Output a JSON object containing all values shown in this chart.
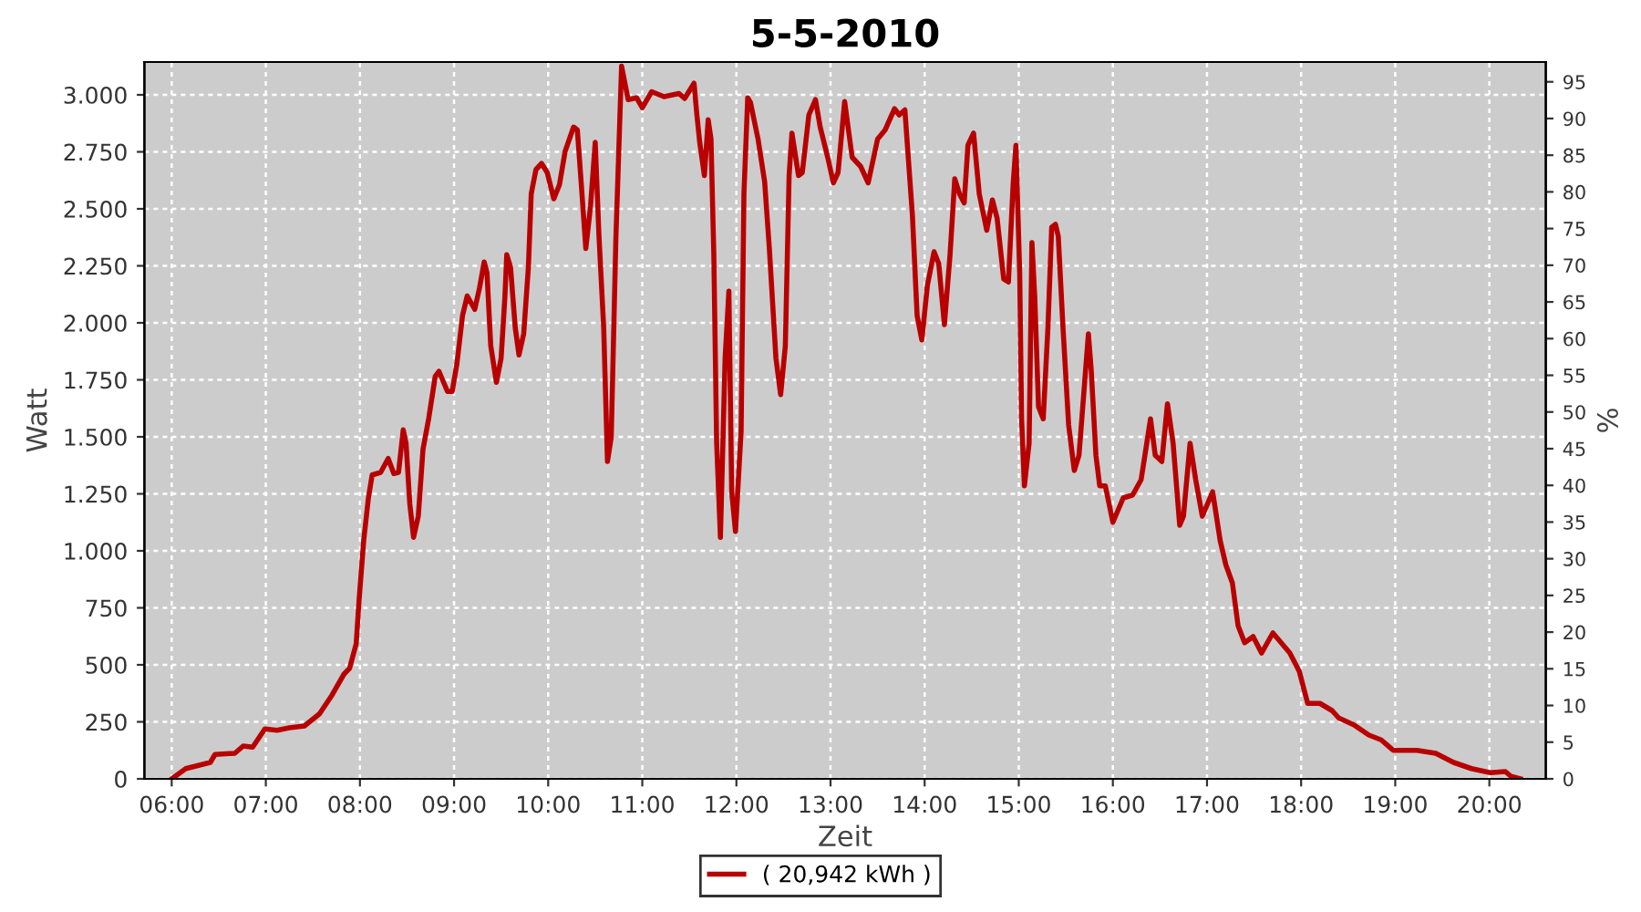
{
  "chart_data": {
    "type": "line",
    "title": "5-5-2010",
    "xlabel": "Zeit",
    "ylabel": "Watt",
    "y2label": "%",
    "xlim": [
      5.71,
      20.6
    ],
    "xticks": [
      {
        "value": 6,
        "label": "06:00"
      },
      {
        "value": 7,
        "label": "07:00"
      },
      {
        "value": 8,
        "label": "08:00"
      },
      {
        "value": 9,
        "label": "09:00"
      },
      {
        "value": 10,
        "label": "10:00"
      },
      {
        "value": 11,
        "label": "11:00"
      },
      {
        "value": 12,
        "label": "12:00"
      },
      {
        "value": 13,
        "label": "13:00"
      },
      {
        "value": 14,
        "label": "14:00"
      },
      {
        "value": 15,
        "label": "15:00"
      },
      {
        "value": 16,
        "label": "16:00"
      },
      {
        "value": 17,
        "label": "17:00"
      },
      {
        "value": 18,
        "label": "18:00"
      },
      {
        "value": 19,
        "label": "19:00"
      },
      {
        "value": 20,
        "label": "20:00"
      }
    ],
    "ylim": [
      0,
      3144
    ],
    "yticks": [
      0,
      250,
      500,
      750,
      {
        "value": 1000,
        "label": "1.000"
      },
      {
        "value": 1250,
        "label": "1.250"
      },
      {
        "value": 1500,
        "label": "1.500"
      },
      {
        "value": 1750,
        "label": "1.750"
      },
      {
        "value": 2000,
        "label": "2.000"
      },
      {
        "value": 2250,
        "label": "2.250"
      },
      {
        "value": 2500,
        "label": "2.500"
      },
      {
        "value": 2750,
        "label": "2.750"
      },
      {
        "value": 3000,
        "label": "3.000"
      }
    ],
    "y2lim": [
      0,
      97.7
    ],
    "y2ticks": [
      0,
      5,
      10,
      15,
      20,
      25,
      30,
      35,
      40,
      45,
      50,
      55,
      60,
      65,
      70,
      75,
      80,
      85,
      90,
      95
    ],
    "grid": true,
    "legend": "bottom",
    "marker": "none",
    "line_style": "solid",
    "series": [
      {
        "name": "( 20,942 kWh )",
        "color": "#b80000",
        "x": [
          6.0,
          6.15,
          6.41,
          6.46,
          6.67,
          6.76,
          6.86,
          6.99,
          7.12,
          7.25,
          7.41,
          7.57,
          7.7,
          7.83,
          7.89,
          7.96,
          7.99,
          8.04,
          8.09,
          8.13,
          8.22,
          8.3,
          8.36,
          8.41,
          8.46,
          8.49,
          8.53,
          8.57,
          8.62,
          8.67,
          8.73,
          8.8,
          8.84,
          8.93,
          8.98,
          9.03,
          9.09,
          9.14,
          9.22,
          9.27,
          9.32,
          9.35,
          9.39,
          9.45,
          9.5,
          9.54,
          9.56,
          9.6,
          9.65,
          9.69,
          9.74,
          9.79,
          9.82,
          9.87,
          9.93,
          9.99,
          10.06,
          10.12,
          10.18,
          10.27,
          10.31,
          10.35,
          10.4,
          10.45,
          10.5,
          10.54,
          10.59,
          10.63,
          10.67,
          10.72,
          10.75,
          10.78,
          10.85,
          10.94,
          11.0,
          11.1,
          11.23,
          11.39,
          11.45,
          11.55,
          11.58,
          11.61,
          11.66,
          11.7,
          11.73,
          11.76,
          11.79,
          11.83,
          11.88,
          11.92,
          11.95,
          11.99,
          12.05,
          12.08,
          12.12,
          12.15,
          12.23,
          12.3,
          12.35,
          12.42,
          12.47,
          12.52,
          12.56,
          12.59,
          12.66,
          12.7,
          12.77,
          12.84,
          12.89,
          12.97,
          13.03,
          13.08,
          13.15,
          13.23,
          13.32,
          13.4,
          13.5,
          13.58,
          13.68,
          13.73,
          13.79,
          13.87,
          13.92,
          13.97,
          14.03,
          14.1,
          14.15,
          14.21,
          14.27,
          14.32,
          14.37,
          14.42,
          14.46,
          14.52,
          14.58,
          14.66,
          14.72,
          14.77,
          14.84,
          14.89,
          14.94,
          14.97,
          15.01,
          15.03,
          15.06,
          15.11,
          15.14,
          15.17,
          15.21,
          15.26,
          15.31,
          15.35,
          15.39,
          15.42,
          15.47,
          15.53,
          15.59,
          15.64,
          15.69,
          15.74,
          15.77,
          15.82,
          15.86,
          15.92,
          16.0,
          16.11,
          16.21,
          16.3,
          16.4,
          16.45,
          16.52,
          16.58,
          16.64,
          16.71,
          16.75,
          16.82,
          16.88,
          16.95,
          17.06,
          17.14,
          17.2,
          17.27,
          17.33,
          17.4,
          17.49,
          17.58,
          17.7,
          17.88,
          17.98,
          18.07,
          18.2,
          18.33,
          18.4,
          18.56,
          18.72,
          18.85,
          18.98,
          19.23,
          19.43,
          19.62,
          19.81,
          20.01,
          20.17,
          20.23,
          20.33
        ],
        "values": [
          0,
          45,
          72,
          107,
          112,
          144,
          139,
          219,
          213,
          224,
          232,
          285,
          365,
          459,
          485,
          592,
          779,
          1045,
          1232,
          1333,
          1344,
          1405,
          1339,
          1344,
          1531,
          1472,
          1205,
          1059,
          1152,
          1445,
          1579,
          1765,
          1787,
          1699,
          1699,
          1819,
          2032,
          2118,
          2059,
          2152,
          2267,
          2219,
          1899,
          1739,
          1845,
          2112,
          2299,
          2245,
          1979,
          1859,
          1952,
          2245,
          2566,
          2672,
          2699,
          2659,
          2544,
          2606,
          2752,
          2859,
          2846,
          2619,
          2326,
          2512,
          2792,
          2379,
          1979,
          1392,
          1499,
          2379,
          2752,
          3126,
          2979,
          2987,
          2944,
          3014,
          2992,
          3006,
          2984,
          3051,
          2912,
          2792,
          2646,
          2891,
          2806,
          2299,
          1472,
          1059,
          1845,
          2139,
          1259,
          1085,
          1525,
          2566,
          2987,
          2966,
          2806,
          2619,
          2326,
          1845,
          1685,
          1899,
          2646,
          2832,
          2646,
          2659,
          2912,
          2979,
          2859,
          2726,
          2614,
          2659,
          2971,
          2726,
          2686,
          2614,
          2806,
          2846,
          2939,
          2912,
          2934,
          2472,
          2032,
          1925,
          2166,
          2312,
          2259,
          1992,
          2299,
          2632,
          2566,
          2526,
          2779,
          2832,
          2566,
          2406,
          2539,
          2459,
          2192,
          2179,
          2606,
          2779,
          2219,
          1579,
          1285,
          1472,
          2352,
          2112,
          1632,
          1579,
          1979,
          2419,
          2432,
          2379,
          1979,
          1552,
          1352,
          1419,
          1685,
          1952,
          1792,
          1419,
          1285,
          1285,
          1125,
          1232,
          1245,
          1312,
          1579,
          1419,
          1392,
          1645,
          1472,
          1112,
          1152,
          1472,
          1312,
          1152,
          1259,
          1045,
          939,
          859,
          672,
          597,
          624,
          552,
          640,
          552,
          472,
          331,
          331,
          299,
          267,
          237,
          192,
          171,
          125,
          125,
          112,
          72,
          45,
          27,
          32,
          11,
          0
        ]
      }
    ]
  }
}
